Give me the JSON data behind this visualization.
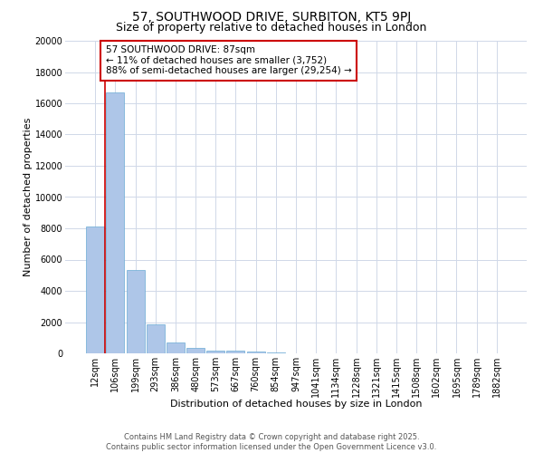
{
  "title_line1": "57, SOUTHWOOD DRIVE, SURBITON, KT5 9PJ",
  "title_line2": "Size of property relative to detached houses in London",
  "xlabel": "Distribution of detached houses by size in London",
  "ylabel": "Number of detached properties",
  "categories": [
    "12sqm",
    "106sqm",
    "199sqm",
    "293sqm",
    "386sqm",
    "480sqm",
    "573sqm",
    "667sqm",
    "760sqm",
    "854sqm",
    "947sqm",
    "1041sqm",
    "1134sqm",
    "1228sqm",
    "1321sqm",
    "1415sqm",
    "1508sqm",
    "1602sqm",
    "1695sqm",
    "1789sqm",
    "1882sqm"
  ],
  "values": [
    8100,
    16700,
    5350,
    1850,
    700,
    350,
    200,
    150,
    100,
    50,
    0,
    0,
    0,
    0,
    0,
    0,
    0,
    0,
    0,
    0,
    0
  ],
  "bar_color": "#aec6e8",
  "bar_edge_color": "#6aaad4",
  "vline_color": "#cc0000",
  "vline_x": 0.5,
  "annotation_text": "57 SOUTHWOOD DRIVE: 87sqm\n← 11% of detached houses are smaller (3,752)\n88% of semi-detached houses are larger (29,254) →",
  "annotation_box_color": "#ffffff",
  "annotation_box_edge": "#cc0000",
  "ylim": [
    0,
    20000
  ],
  "yticks": [
    0,
    2000,
    4000,
    6000,
    8000,
    10000,
    12000,
    14000,
    16000,
    18000,
    20000
  ],
  "footer_text": "Contains HM Land Registry data © Crown copyright and database right 2025.\nContains public sector information licensed under the Open Government Licence v3.0.",
  "background_color": "#ffffff",
  "grid_color": "#d0d8e8",
  "title_fontsize": 10,
  "subtitle_fontsize": 9,
  "axis_label_fontsize": 8,
  "tick_fontsize": 7,
  "annotation_fontsize": 7.5,
  "footer_fontsize": 6.0
}
